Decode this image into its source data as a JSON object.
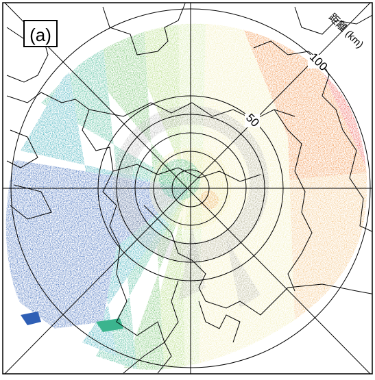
{
  "panel_label": "(a)",
  "range_label": "距離 (km)",
  "ring_labels": [
    "50",
    "100"
  ],
  "colors": {
    "blue": "#2f5fb5",
    "cyan": "#2aa6b3",
    "teal": "#3bb48e",
    "green": "#69bf62",
    "lightgreen": "#a9d86e",
    "palegreen": "#cfe79c",
    "paleyellow": "#f1ecb0",
    "gray": "#a9a9a9",
    "lightorange": "#f3c07a",
    "orange": "#f08a3b",
    "red": "#ec4e45",
    "outline": "#000000"
  }
}
